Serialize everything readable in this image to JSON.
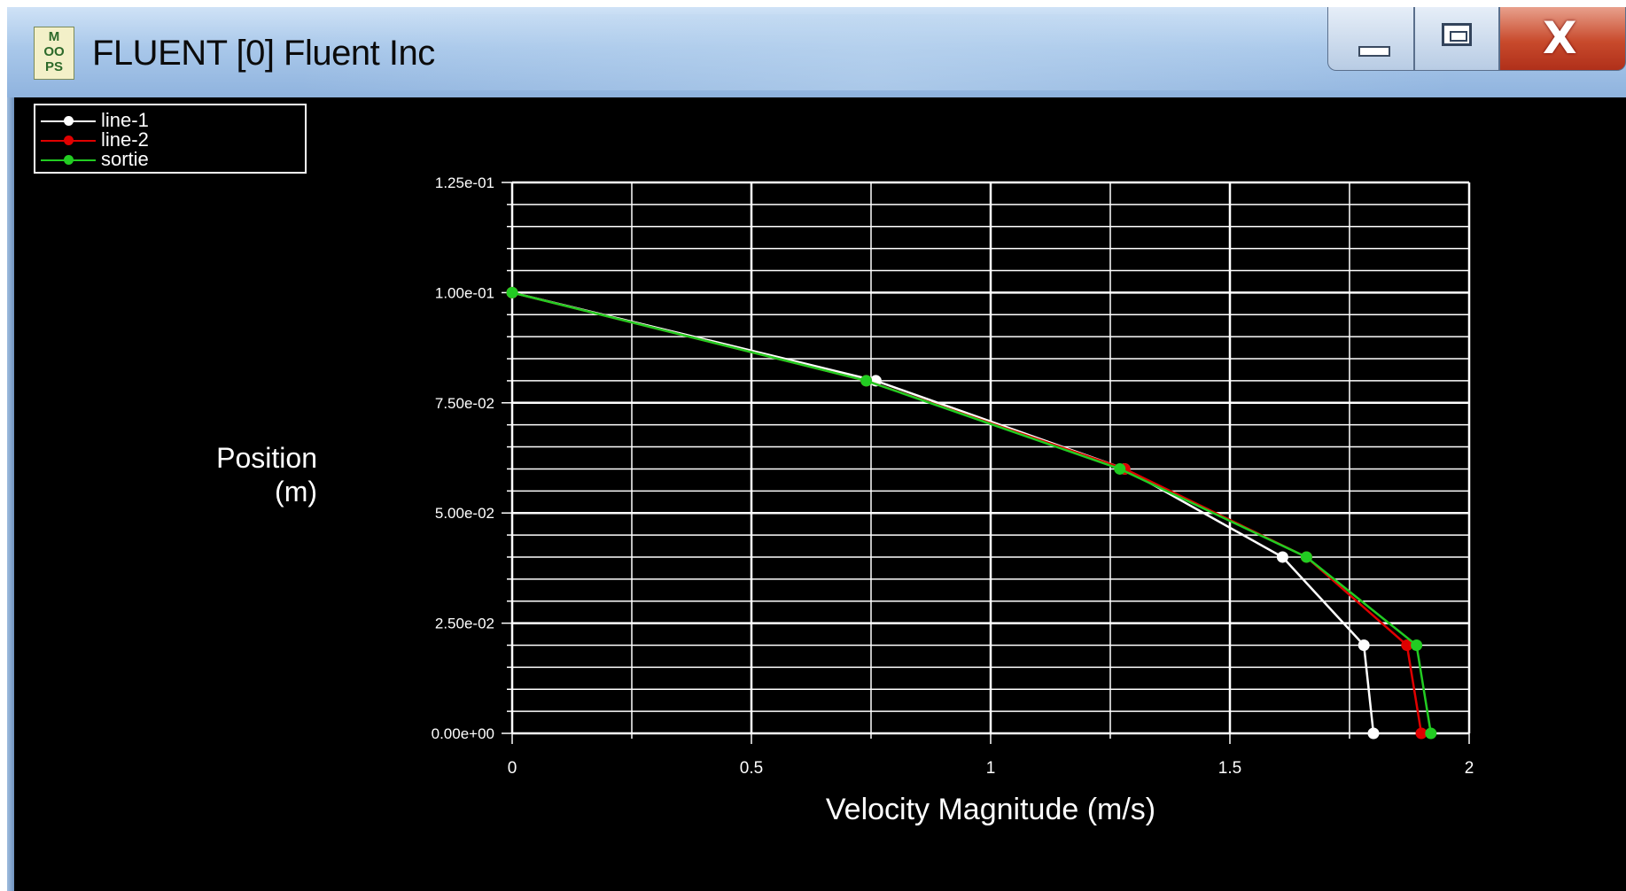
{
  "window": {
    "title": "FLUENT [0] Fluent Inc",
    "icon_name": "fluent-app-icon",
    "icon_text": [
      "M",
      "OO",
      "PS"
    ],
    "controls": {
      "minimize_icon": "minimize-icon",
      "maximize_icon": "maximize-icon",
      "close_label": "X"
    }
  },
  "colors": {
    "background": "#000000",
    "grid": "#ffffff",
    "line-1": "#ffffff",
    "line-2": "#e00000",
    "sortie": "#22cc22"
  },
  "chart_data": {
    "type": "line",
    "title": "",
    "xlabel": "Velocity Magnitude (m/s)",
    "ylabel": "Position\n(m)",
    "ylabel_lines": [
      "Position",
      "(m)"
    ],
    "xlim": [
      0,
      2
    ],
    "ylim": [
      0,
      0.125
    ],
    "x_ticks": [
      0,
      0.5,
      1,
      1.5,
      2
    ],
    "x_tick_labels": [
      "0",
      "0.5",
      "1",
      "1.5",
      "2"
    ],
    "y_ticks": [
      0,
      0.025,
      0.05,
      0.075,
      0.1,
      0.125
    ],
    "y_tick_labels": [
      "0.00e+00",
      "2.50e-02",
      "5.00e-02",
      "7.50e-02",
      "1.00e-01",
      "1.25e-01"
    ],
    "grid": true,
    "legend_position": "top-left",
    "series": [
      {
        "name": "line-1",
        "color": "#ffffff",
        "points": [
          [
            0,
            0.1
          ],
          [
            0.76,
            0.08
          ],
          [
            1.28,
            0.06
          ],
          [
            1.61,
            0.04
          ],
          [
            1.78,
            0.02
          ],
          [
            1.8,
            0
          ]
        ]
      },
      {
        "name": "line-2",
        "color": "#e00000",
        "points": [
          [
            0,
            0.1
          ],
          [
            0.74,
            0.08
          ],
          [
            1.28,
            0.06
          ],
          [
            1.66,
            0.04
          ],
          [
            1.87,
            0.02
          ],
          [
            1.9,
            0
          ]
        ]
      },
      {
        "name": "sortie",
        "color": "#22cc22",
        "points": [
          [
            0,
            0.1
          ],
          [
            0.74,
            0.08
          ],
          [
            1.27,
            0.06
          ],
          [
            1.66,
            0.04
          ],
          [
            1.89,
            0.02
          ],
          [
            1.92,
            0
          ]
        ]
      }
    ]
  }
}
